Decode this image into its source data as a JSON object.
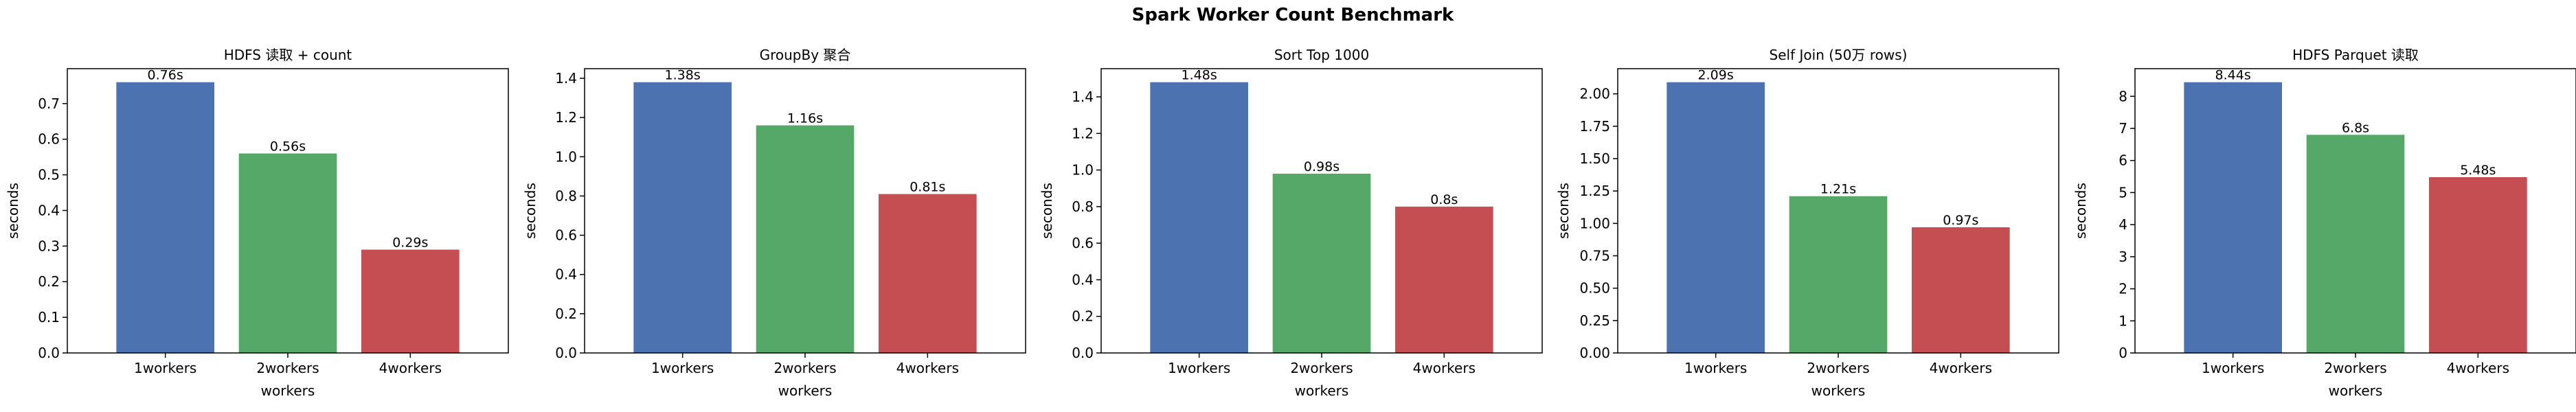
{
  "suptitle": "Spark Worker Count Benchmark",
  "colors": [
    "#4c72b0",
    "#55a868",
    "#c44e52"
  ],
  "chart_data": [
    {
      "type": "bar",
      "title": "HDFS 读取 + count",
      "xlabel": "workers",
      "ylabel": "seconds",
      "categories": [
        "1workers",
        "2workers",
        "4workers"
      ],
      "values": [
        0.76,
        0.56,
        0.29
      ],
      "value_labels": [
        "0.76s",
        "0.56s",
        "0.29s"
      ],
      "ylim": [
        0,
        0.798
      ],
      "yticks": [
        0.0,
        0.1,
        0.2,
        0.3,
        0.4,
        0.5,
        0.6,
        0.7
      ],
      "ytick_labels": [
        "0.0",
        "0.1",
        "0.2",
        "0.3",
        "0.4",
        "0.5",
        "0.6",
        "0.7"
      ]
    },
    {
      "type": "bar",
      "title": "GroupBy 聚合",
      "xlabel": "workers",
      "ylabel": "seconds",
      "categories": [
        "1workers",
        "2workers",
        "4workers"
      ],
      "values": [
        1.38,
        1.16,
        0.81
      ],
      "value_labels": [
        "1.38s",
        "1.16s",
        "0.81s"
      ],
      "ylim": [
        0,
        1.449
      ],
      "yticks": [
        0.0,
        0.2,
        0.4,
        0.6,
        0.8,
        1.0,
        1.2,
        1.4
      ],
      "ytick_labels": [
        "0.0",
        "0.2",
        "0.4",
        "0.6",
        "0.8",
        "1.0",
        "1.2",
        "1.4"
      ]
    },
    {
      "type": "bar",
      "title": "Sort Top 1000",
      "xlabel": "workers",
      "ylabel": "seconds",
      "categories": [
        "1workers",
        "2workers",
        "4workers"
      ],
      "values": [
        1.48,
        0.98,
        0.8
      ],
      "value_labels": [
        "1.48s",
        "0.98s",
        "0.8s"
      ],
      "ylim": [
        0,
        1.554
      ],
      "yticks": [
        0.0,
        0.2,
        0.4,
        0.6,
        0.8,
        1.0,
        1.2,
        1.4
      ],
      "ytick_labels": [
        "0.0",
        "0.2",
        "0.4",
        "0.6",
        "0.8",
        "1.0",
        "1.2",
        "1.4"
      ]
    },
    {
      "type": "bar",
      "title": "Self Join (50万 rows)",
      "xlabel": "workers",
      "ylabel": "seconds",
      "categories": [
        "1workers",
        "2workers",
        "4workers"
      ],
      "values": [
        2.09,
        1.21,
        0.97
      ],
      "value_labels": [
        "2.09s",
        "1.21s",
        "0.97s"
      ],
      "ylim": [
        0,
        2.1945
      ],
      "yticks": [
        0.0,
        0.25,
        0.5,
        0.75,
        1.0,
        1.25,
        1.5,
        1.75,
        2.0
      ],
      "ytick_labels": [
        "0.00",
        "0.25",
        "0.50",
        "0.75",
        "1.00",
        "1.25",
        "1.50",
        "1.75",
        "2.00"
      ]
    },
    {
      "type": "bar",
      "title": "HDFS Parquet 读取",
      "xlabel": "workers",
      "ylabel": "seconds",
      "categories": [
        "1workers",
        "2workers",
        "4workers"
      ],
      "values": [
        8.44,
        6.8,
        5.48
      ],
      "value_labels": [
        "8.44s",
        "6.8s",
        "5.48s"
      ],
      "ylim": [
        0,
        8.862
      ],
      "yticks": [
        0,
        1,
        2,
        3,
        4,
        5,
        6,
        7,
        8
      ],
      "ytick_labels": [
        "0",
        "1",
        "2",
        "3",
        "4",
        "5",
        "6",
        "7",
        "8"
      ]
    }
  ]
}
